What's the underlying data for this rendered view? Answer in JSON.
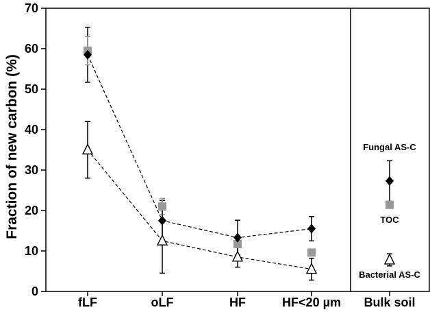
{
  "chart_data": {
    "type": "scatter",
    "ylabel": "Fraction of new carbon (%)",
    "ylim": [
      0,
      70
    ],
    "yticks": [
      "0",
      "10",
      "20",
      "30",
      "40",
      "50",
      "60",
      "70"
    ],
    "categories": [
      "fLF",
      "oLF",
      "HF",
      "HF<20 µm",
      "Bulk soil"
    ],
    "series": [
      {
        "name": "Fungal AS-C",
        "marker": "filled-diamond",
        "color": "#000000",
        "values": [
          58.5,
          17.5,
          13.3,
          15.5,
          27.3
        ],
        "err": [
          6.8,
          5.0,
          4.3,
          3.0,
          5.0
        ]
      },
      {
        "name": "TOC",
        "marker": "gray-square",
        "color": "#999999",
        "values": [
          59.5,
          21.0,
          11.7,
          9.6,
          21.4
        ],
        "err": [
          3.5,
          2.0,
          null,
          null,
          0.8
        ]
      },
      {
        "name": "Bacterial AS-C",
        "marker": "open-triangle",
        "color": "#000000",
        "values": [
          35.0,
          12.5,
          8.5,
          5.5,
          7.8
        ],
        "err": [
          7.0,
          8.0,
          2.5,
          2.7,
          1.5
        ]
      }
    ],
    "dashed_lines_over": [
      "fLF",
      "oLF",
      "HF",
      "HF<20 µm"
    ],
    "dashed_series": [
      "Fungal AS-C",
      "Bacterial AS-C"
    ],
    "grid": false,
    "separator_before": "Bulk soil"
  },
  "annotations": {
    "fungal": "Fungal AS-C",
    "toc": "TOC",
    "bacterial": "Bacterial AS-C"
  }
}
